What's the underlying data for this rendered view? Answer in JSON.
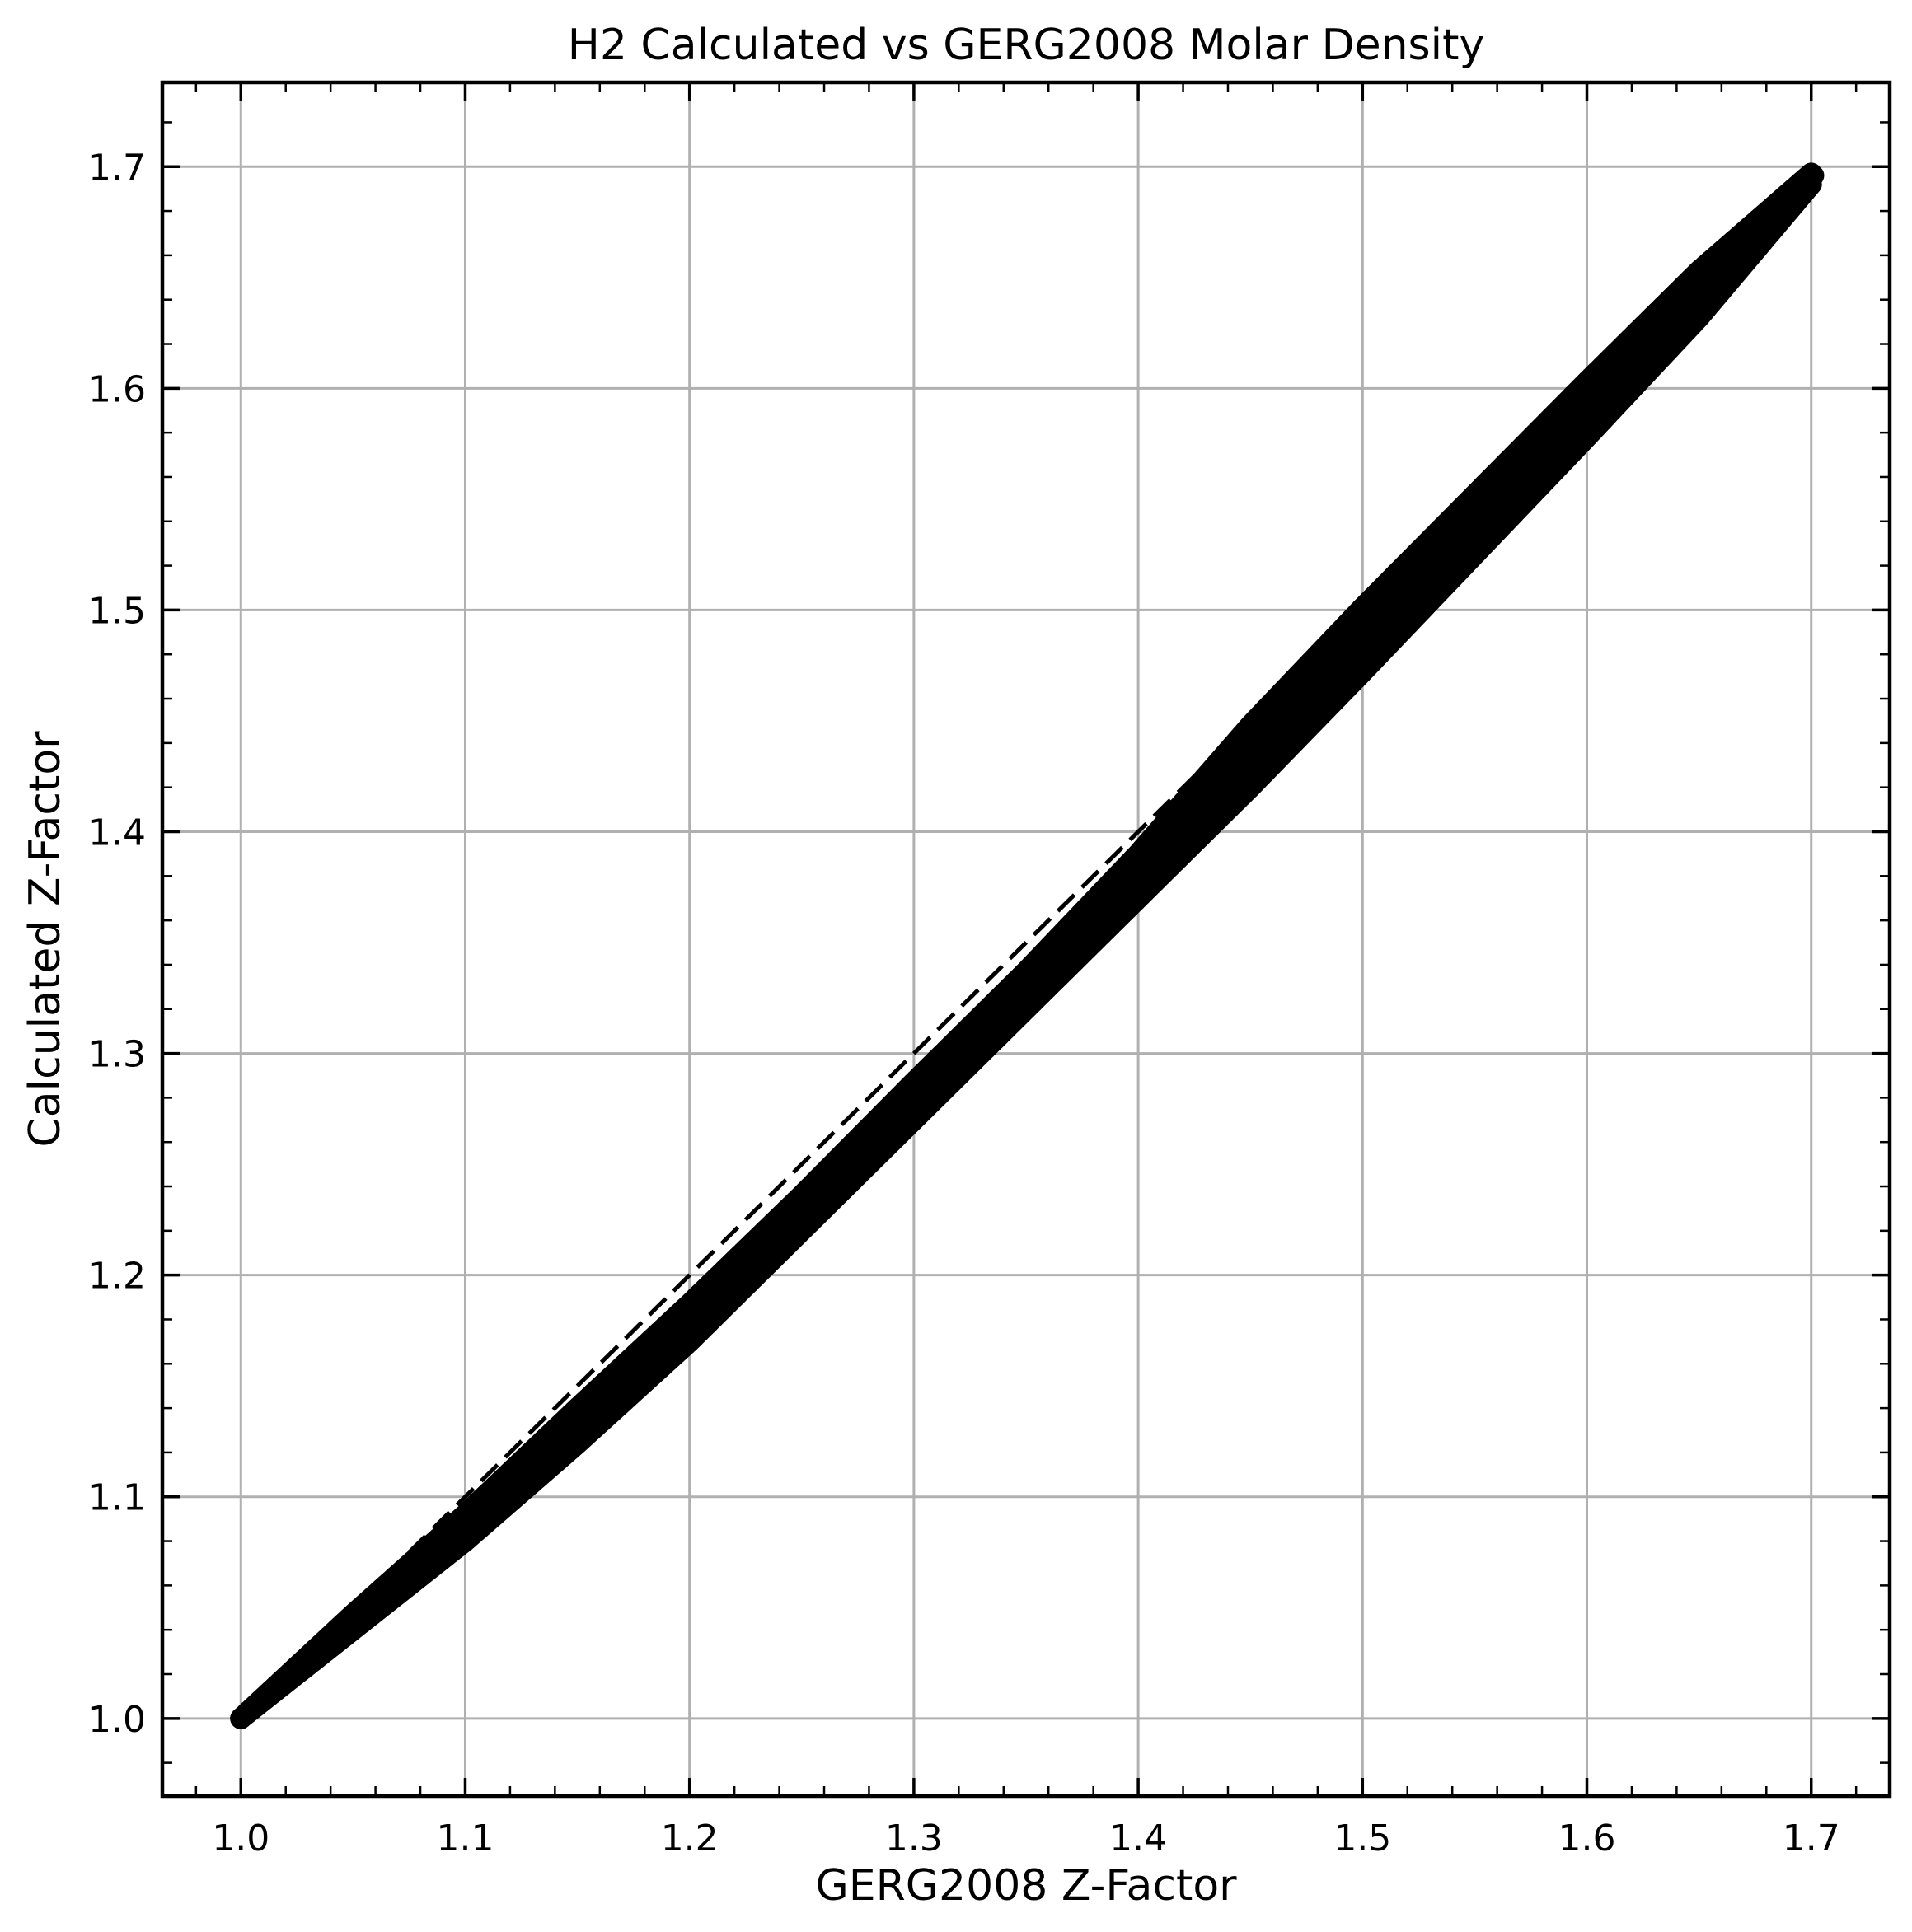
{
  "chart_data": {
    "type": "scatter",
    "title": "H2 Calculated vs GERG2008 Molar Density",
    "xlabel": "GERG2008 Z-Factor",
    "ylabel": "Calculated Z-Factor",
    "xlim": [
      0.965,
      1.735
    ],
    "ylim": [
      0.965,
      1.738
    ],
    "grid": true,
    "x_ticks": [
      1.0,
      1.1,
      1.2,
      1.3,
      1.4,
      1.5,
      1.6,
      1.7
    ],
    "y_ticks": [
      1.0,
      1.1,
      1.2,
      1.3,
      1.4,
      1.5,
      1.6,
      1.7
    ],
    "x_tick_labels": [
      "1.0",
      "1.1",
      "1.2",
      "1.3",
      "1.4",
      "1.5",
      "1.6",
      "1.7"
    ],
    "y_tick_labels": [
      "1.0",
      "1.1",
      "1.2",
      "1.3",
      "1.4",
      "1.5",
      "1.6",
      "1.7"
    ],
    "minor_tick_step": 0.02,
    "reference_line": {
      "style": "dashed",
      "color": "#000000",
      "x": [
        1.0,
        1.7
      ],
      "y": [
        1.0,
        1.7
      ]
    },
    "series": [
      {
        "color": "#000000",
        "band_x": [
          1.0,
          1.05,
          1.1,
          1.15,
          1.2,
          1.25,
          1.3,
          1.35,
          1.4,
          1.45,
          1.5,
          1.55,
          1.6,
          1.65,
          1.7
        ],
        "band_y_low": [
          1.0,
          1.04,
          1.08,
          1.124,
          1.17,
          1.22,
          1.27,
          1.32,
          1.37,
          1.42,
          1.472,
          1.525,
          1.578,
          1.632,
          1.692
        ],
        "band_y_high": [
          1.0,
          1.047,
          1.092,
          1.14,
          1.187,
          1.236,
          1.287,
          1.337,
          1.39,
          1.448,
          1.501,
          1.552,
          1.603,
          1.653,
          1.697
        ],
        "end_points": [
          [
            1.0,
            1.0
          ],
          [
            1.701,
            1.696
          ]
        ]
      }
    ]
  }
}
